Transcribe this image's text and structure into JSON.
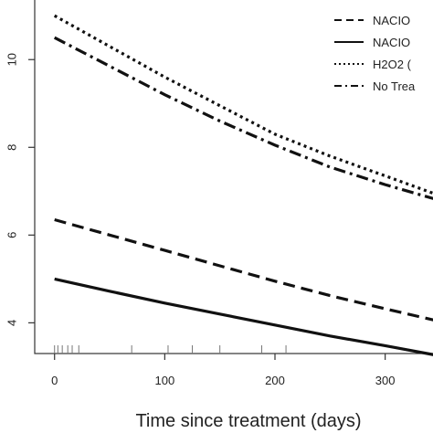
{
  "chart_data": {
    "type": "line",
    "xlabel": "Time since treatment (days)",
    "ylabel": "",
    "xlim": [
      -18,
      355
    ],
    "ylim": [
      3.3,
      11.4
    ],
    "x_ticks": [
      0,
      100,
      200,
      300
    ],
    "x_tick_labels": [
      "0",
      "100",
      "200",
      "300"
    ],
    "y_ticks": [
      4,
      6,
      8,
      10
    ],
    "y_tick_labels": [
      "4",
      "6",
      "8",
      "10"
    ],
    "grid": false,
    "legend_position": "top-right",
    "rug_x": [
      0,
      3,
      7,
      12,
      16,
      22,
      70,
      103,
      125,
      150,
      188,
      210
    ],
    "series": [
      {
        "name": "NACIO",
        "line_style": "dashed",
        "color": "#111111",
        "x": [
          0,
          50,
          100,
          150,
          200,
          250,
          300,
          355
        ],
        "y": [
          6.35,
          6.0,
          5.65,
          5.3,
          4.95,
          4.62,
          4.32,
          4.0
        ]
      },
      {
        "name": "NACIO",
        "line_style": "solid",
        "color": "#111111",
        "x": [
          0,
          50,
          100,
          150,
          200,
          250,
          300,
          355
        ],
        "y": [
          5.0,
          4.72,
          4.45,
          4.2,
          3.95,
          3.7,
          3.48,
          3.22
        ]
      },
      {
        "name": "H2O2 (",
        "line_style": "dotted",
        "color": "#111111",
        "x": [
          0,
          50,
          100,
          150,
          200,
          250,
          300,
          355
        ],
        "y": [
          11.0,
          10.3,
          9.6,
          8.95,
          8.3,
          7.8,
          7.35,
          6.85
        ]
      },
      {
        "name": "No Trea",
        "line_style": "dashdot",
        "color": "#111111",
        "x": [
          0,
          50,
          100,
          150,
          200,
          250,
          300,
          355
        ],
        "y": [
          10.5,
          9.85,
          9.2,
          8.6,
          8.05,
          7.55,
          7.15,
          6.75
        ]
      }
    ]
  }
}
